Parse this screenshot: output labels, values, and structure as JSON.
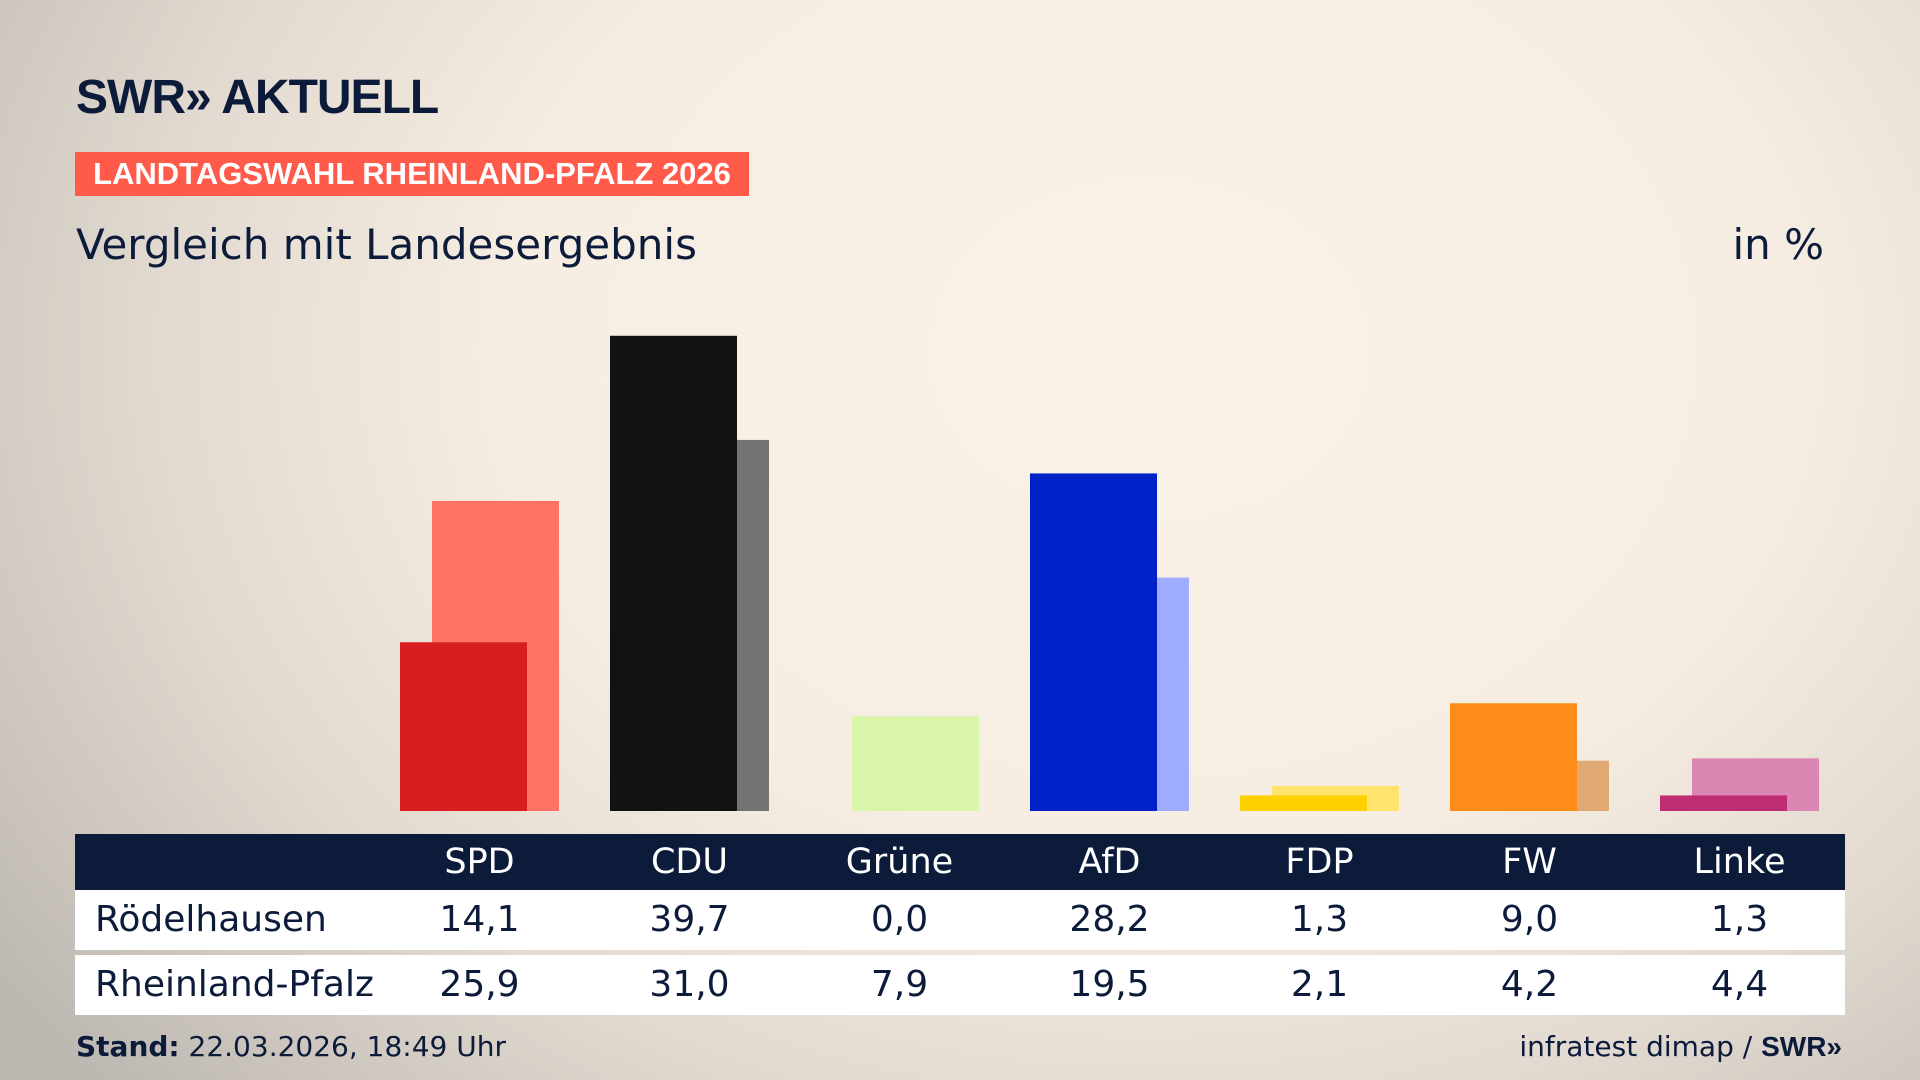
{
  "header": {
    "logo": "SWR» AKTUELL",
    "label": "LANDTAGSWAHL RHEINLAND-PFALZ 2026",
    "subtitle": "Vergleich mit Landesergebnis",
    "unit": "in %"
  },
  "chart_data": {
    "type": "bar",
    "title": "Vergleich mit Landesergebnis",
    "ylabel": "in %",
    "ylim": [
      0,
      40
    ],
    "categories": [
      "SPD",
      "CDU",
      "Grüne",
      "AfD",
      "FDP",
      "FW",
      "Linke"
    ],
    "series": [
      {
        "name": "Rödelhausen",
        "values": [
          14.1,
          39.7,
          0.0,
          28.2,
          1.3,
          9.0,
          1.3
        ],
        "display": [
          "14,1",
          "39,7",
          "0,0",
          "28,2",
          "1,3",
          "9,0",
          "1,3"
        ],
        "colors": [
          "#d81f1f",
          "#121212",
          "#a8d86a",
          "#0020c8",
          "#ffd000",
          "#ff8c18",
          "#be2c72"
        ]
      },
      {
        "name": "Rheinland-Pfalz",
        "values": [
          25.9,
          31.0,
          7.9,
          19.5,
          2.1,
          4.2,
          4.4
        ],
        "display": [
          "25,9",
          "31,0",
          "7,9",
          "19,5",
          "2,1",
          "4,2",
          "4,4"
        ],
        "colors": [
          "#ff7367",
          "#737373",
          "#d8f5a8",
          "#9eadff",
          "#ffe36c",
          "#e0a872",
          "#dc86b4"
        ]
      }
    ]
  },
  "footer": {
    "stand_label": "Stand:",
    "stand_value": "22.03.2026, 18:49 Uhr",
    "source": "infratest dimap /",
    "source_logo": "SWR»"
  }
}
